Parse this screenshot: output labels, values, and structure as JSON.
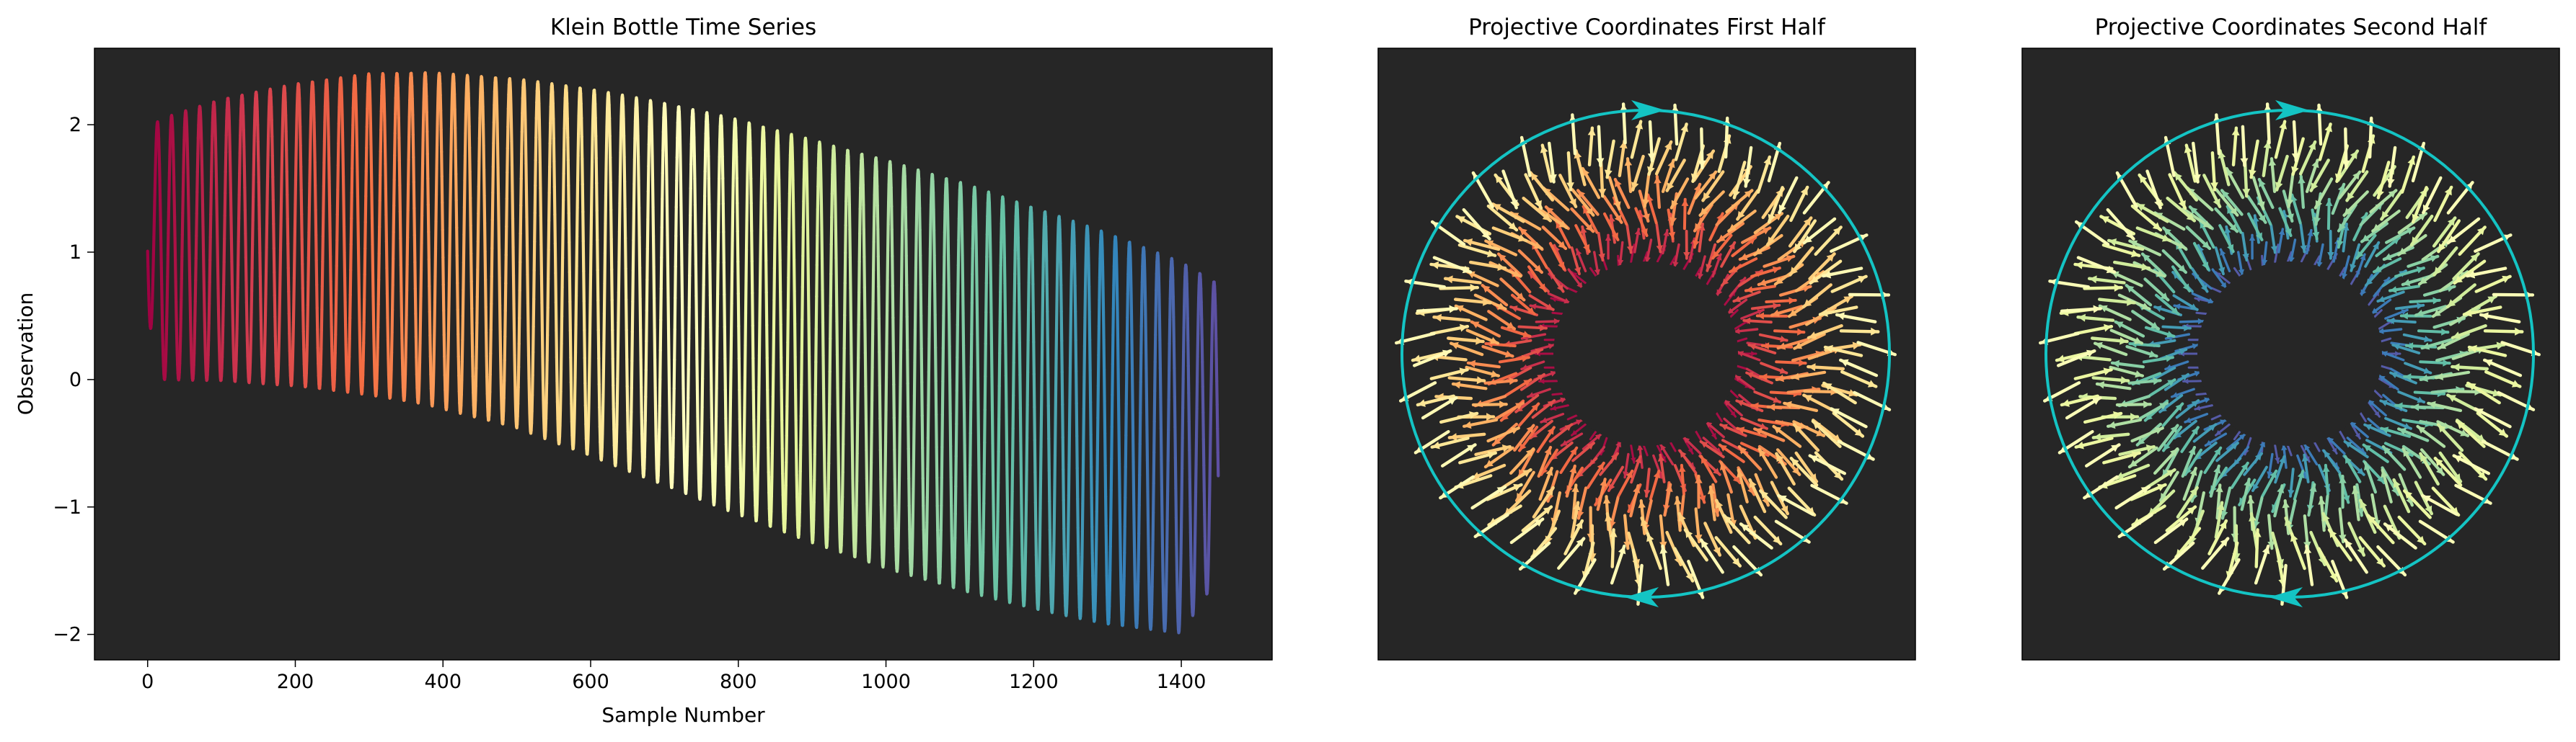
{
  "colors": {
    "panel_bg": "#262626",
    "circle": "#14c4c4",
    "spectral": [
      "#9e0142",
      "#d53e4f",
      "#f46d43",
      "#fdae61",
      "#fee08b",
      "#ffffbf",
      "#e6f598",
      "#abdda4",
      "#66c2a5",
      "#3288bd",
      "#5e4fa2"
    ]
  },
  "chart_data": [
    {
      "type": "line",
      "title": "Klein Bottle Time Series",
      "xlabel": "Sample Number",
      "ylabel": "Observation",
      "xlim": [
        -72,
        1523
      ],
      "ylim": [
        -2.2,
        2.6
      ],
      "xticks": [
        0,
        200,
        400,
        600,
        800,
        1000,
        1200,
        1400
      ],
      "yticks": [
        2,
        1,
        0,
        -1,
        -2
      ],
      "xtick_labels": [
        "0",
        "200",
        "400",
        "600",
        "800",
        "1000",
        "1200",
        "1400"
      ],
      "ytick_labels": [
        "2",
        "1",
        "0",
        "−1",
        "−2"
      ],
      "colormap": "Spectral",
      "n_samples": 1450,
      "n_cycles": 76,
      "envelope_points": {
        "sample": [
          0,
          20,
          100,
          200,
          300,
          380,
          500,
          600,
          700,
          800,
          900,
          1000,
          1100,
          1200,
          1300,
          1400,
          1450
        ],
        "peak": [
          1.97,
          2.05,
          2.2,
          2.32,
          2.4,
          2.41,
          2.36,
          2.28,
          2.17,
          2.04,
          1.88,
          1.72,
          1.55,
          1.35,
          1.15,
          0.92,
          0.75
        ],
        "trough": [
          0.5,
          0.0,
          -0.01,
          -0.05,
          -0.12,
          -0.2,
          -0.38,
          -0.6,
          -0.83,
          -1.06,
          -1.28,
          -1.48,
          -1.65,
          -1.8,
          -1.92,
          -1.99,
          -1.55
        ]
      }
    },
    {
      "type": "quiver",
      "title": "Projective Coordinates First Half",
      "colormap_range": "red to yellow (first half of Spectral)",
      "circle": true,
      "circle_arrow_positions": [
        "top",
        "bottom"
      ],
      "axes": "hidden"
    },
    {
      "type": "quiver",
      "title": "Projective Coordinates Second Half",
      "colormap_range": "yellow to purple (second half of Spectral)",
      "circle": true,
      "circle_arrow_positions": [
        "top",
        "bottom"
      ],
      "axes": "hidden"
    }
  ]
}
